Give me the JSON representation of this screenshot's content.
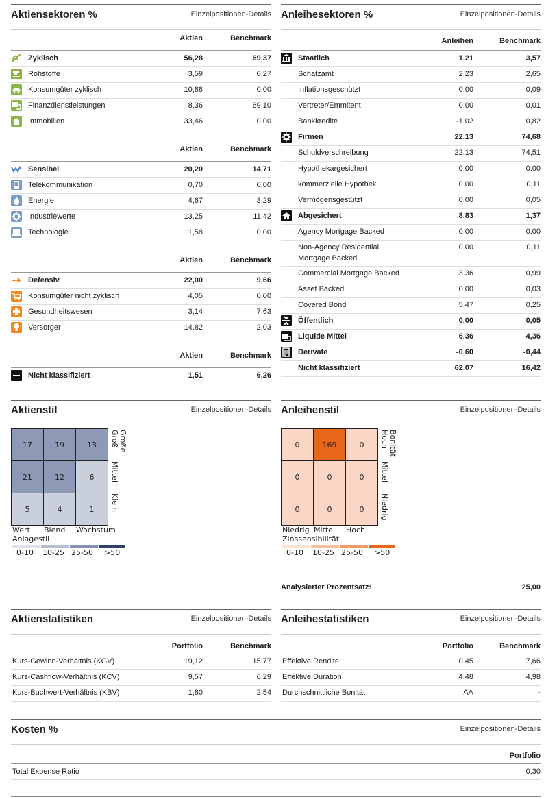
{
  "equity_sectors": {
    "title": "Aktiensektoren %",
    "link": "Einzelpositionen-Details",
    "col1": "Aktien",
    "col2": "Benchmark",
    "groups": [
      {
        "label": "Zyklisch",
        "v1": "56,28",
        "v2": "69,37",
        "icon": "cyclical-icon",
        "items": [
          {
            "label": "Rohstoffe",
            "v1": "3,59",
            "v2": "0,27",
            "icon": "materials-icon"
          },
          {
            "label": "Konsumgüter zyklisch",
            "v1": "10,88",
            "v2": "0,00",
            "icon": "consumer-cyclical-icon"
          },
          {
            "label": "Finanzdienstleistungen",
            "v1": "8,36",
            "v2": "69,10",
            "icon": "financial-services-icon"
          },
          {
            "label": "Immobilien",
            "v1": "33,46",
            "v2": "0,00",
            "icon": "real-estate-icon"
          }
        ]
      },
      {
        "label": "Sensibel",
        "v1": "20,20",
        "v2": "14,71",
        "icon": "sensitive-icon",
        "items": [
          {
            "label": "Telekommunikation",
            "v1": "0,70",
            "v2": "0,00",
            "icon": "telecom-icon"
          },
          {
            "label": "Energie",
            "v1": "4,67",
            "v2": "3,29",
            "icon": "energy-icon"
          },
          {
            "label": "Industriewerte",
            "v1": "13,25",
            "v2": "11,42",
            "icon": "industrials-icon"
          },
          {
            "label": "Technologie",
            "v1": "1,58",
            "v2": "0,00",
            "icon": "technology-icon"
          }
        ]
      },
      {
        "label": "Defensiv",
        "v1": "22,00",
        "v2": "9,66",
        "icon": "defensive-icon",
        "items": [
          {
            "label": "Konsumgüter nicht zyklisch",
            "v1": "4,05",
            "v2": "0,00",
            "icon": "consumer-defensive-icon"
          },
          {
            "label": "Gesundheitswesen",
            "v1": "3,14",
            "v2": "7,63",
            "icon": "healthcare-icon"
          },
          {
            "label": "Versorger",
            "v1": "14,82",
            "v2": "2,03",
            "icon": "utilities-icon"
          }
        ]
      },
      {
        "label": "Nicht klassifiziert",
        "v1": "1,51",
        "v2": "6,26",
        "icon": "not-classified-icon",
        "items": []
      }
    ]
  },
  "bond_sectors": {
    "title": "Anleihesektoren %",
    "link": "Einzelpositionen-Details",
    "col1": "Anleihen",
    "col2": "Benchmark",
    "rows": [
      {
        "label": "Staatlich",
        "v1": "1,21",
        "v2": "3,57",
        "bold": true,
        "icon": "government-icon"
      },
      {
        "label": "Schatzamt",
        "v1": "2,23",
        "v2": "2,65"
      },
      {
        "label": "Inflationsgeschützt",
        "v1": "0,00",
        "v2": "0,09"
      },
      {
        "label": "Vertreter/Emmitent",
        "v1": "0,00",
        "v2": "0,01"
      },
      {
        "label": "Bankkredite",
        "v1": "-1,02",
        "v2": "0,82"
      },
      {
        "label": "Firmen",
        "v1": "22,13",
        "v2": "74,68",
        "bold": true,
        "icon": "corporate-icon"
      },
      {
        "label": "Schuldverschreibung",
        "v1": "22,13",
        "v2": "74,51"
      },
      {
        "label": "Hypothekargesichert",
        "v1": "0,00",
        "v2": "0,00"
      },
      {
        "label": "kommerzielle Hypothek",
        "v1": "0,00",
        "v2": "0,11"
      },
      {
        "label": "Vermögensgestützt",
        "v1": "0,00",
        "v2": "0,05"
      },
      {
        "label": "Abgesichert",
        "v1": "8,83",
        "v2": "1,37",
        "bold": true,
        "icon": "securitized-icon"
      },
      {
        "label": "Agency Mortgage Backed",
        "v1": "0,00",
        "v2": "0,00"
      },
      {
        "label": "Non-Agency Residential",
        "label2": "Mortgage Backed",
        "v1": "0,00",
        "v2": "0,11"
      },
      {
        "label": "Commercial Mortgage Backed",
        "v1": "3,36",
        "v2": "0,99"
      },
      {
        "label": "Asset Backed",
        "v1": "0,00",
        "v2": "0,03"
      },
      {
        "label": "Covered Bond",
        "v1": "5,47",
        "v2": "0,25"
      },
      {
        "label": "Öffentlich",
        "v1": "0,00",
        "v2": "0,05",
        "bold": true,
        "icon": "municipal-icon"
      },
      {
        "label": "Liquide Mittel",
        "v1": "6,36",
        "v2": "4,36",
        "bold": true,
        "icon": "cash-icon"
      },
      {
        "label": "Derivate",
        "v1": "-0,60",
        "v2": "-0,44",
        "bold": true,
        "icon": "derivative-icon"
      },
      {
        "label": "Nicht klassifiziert",
        "v1": "62,07",
        "v2": "16,42",
        "bold": true
      }
    ]
  },
  "equity_style": {
    "title": "Aktienstil",
    "link": "Einzelpositionen-Details",
    "cells": [
      "17",
      "19",
      "13",
      "21",
      "12",
      "6",
      "5",
      "4",
      "1"
    ],
    "cell_colors": [
      "#8e9ab5",
      "#8e9ab5",
      "#8e9ab5",
      "#8e9ab5",
      "#8e9ab5",
      "#c9d0dc",
      "#c9d0dc",
      "#c9d0dc",
      "#c9d0dc"
    ],
    "row_labels": [
      "Große",
      "Groß",
      "Mittel",
      "Klein"
    ],
    "col_labels": [
      "Wert",
      "Blend",
      "Wachstum"
    ],
    "axis_label": "Anlagestil",
    "legend": [
      "0-10",
      "10-25",
      "25-50",
      ">50"
    ],
    "legend_colors": [
      "#dde1ea",
      "#b7c0d3",
      "#8591b0",
      "#2f3f6e"
    ]
  },
  "bond_style": {
    "title": "Anleihenstil",
    "link": "Einzelpositionen-Details",
    "cells": [
      "0",
      "169",
      "0",
      "0",
      "0",
      "0",
      "0",
      "0",
      "0"
    ],
    "cell_colors": [
      "#f9d7c4",
      "#e8661a",
      "#f9d7c4",
      "#f9d7c4",
      "#f9d7c4",
      "#f9d7c4",
      "#f9d7c4",
      "#f9d7c4",
      "#f9d7c4"
    ],
    "row_labels": [
      "Bonität",
      "Hoch",
      "Mittel",
      "Niedrig"
    ],
    "col_labels": [
      "Niedrig",
      "Mittel",
      "Hoch"
    ],
    "axis_label": "Zinssensibilität",
    "legend": [
      "0-10",
      "10-25",
      "25-50",
      ">50"
    ],
    "legend_colors": [
      "#fde3d4",
      "#f8bf9d",
      "#f29a63",
      "#e8661a"
    ],
    "analyzed_label": "Analysierter Prozentsatz:",
    "analyzed_value": "25,00"
  },
  "equity_stats": {
    "title": "Aktienstatistiken",
    "link": "Einzelpositionen-Details",
    "col1": "Portfolio",
    "col2": "Benchmark",
    "rows": [
      {
        "label": "Kurs-Gewinn-Verhältnis (KGV)",
        "v1": "19,12",
        "v2": "15,77"
      },
      {
        "label": "Kurs-Cashflow-Verhältnis (KCV)",
        "v1": "9,57",
        "v2": "6,29"
      },
      {
        "label": "Kurs-Buchwert-Verhältnis (KBV)",
        "v1": "1,80",
        "v2": "2,54"
      }
    ]
  },
  "bond_stats": {
    "title": "Anleihestatistiken",
    "link": "Einzelpositionen-Details",
    "col1": "Portfolio",
    "col2": "Benchmark",
    "rows": [
      {
        "label": "Effektive Rendite",
        "v1": "0,45",
        "v2": "7,66"
      },
      {
        "label": "Effektive Duration",
        "v1": "4,48",
        "v2": "4,98"
      },
      {
        "label": "Durchschnittliche Bonität",
        "v1": "AA",
        "v2": "-"
      }
    ]
  },
  "costs": {
    "title": "Kosten %",
    "link": "Einzelpositionen-Details",
    "col1": "Portfolio",
    "rows": [
      {
        "label": "Total Expense Ratio",
        "v1": "0,30"
      }
    ]
  }
}
